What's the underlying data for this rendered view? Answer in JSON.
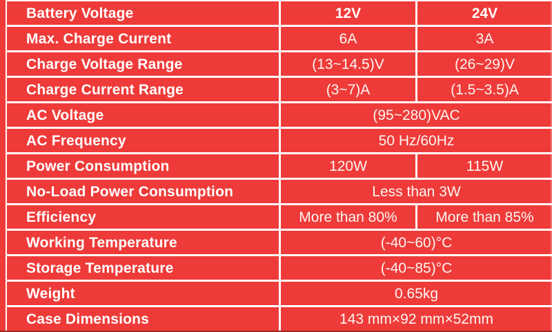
{
  "colors": {
    "table_background": "#ee3b39",
    "grid_lines": "#ffffff",
    "label_text": "#ffffff",
    "value_text": "#fdf5f1"
  },
  "table": {
    "rows": [
      {
        "label": "Battery Voltage",
        "values": [
          "12V",
          "24V"
        ]
      },
      {
        "label": "Max. Charge Current",
        "values": [
          "6A",
          "3A"
        ]
      },
      {
        "label": "Charge Voltage Range",
        "values": [
          "(13~14.5)V",
          "(26~29)V"
        ]
      },
      {
        "label": "Charge Current Range",
        "values": [
          "(3~7)A",
          "(1.5~3.5)A"
        ]
      },
      {
        "label": "AC Voltage",
        "value": "(95~280)VAC"
      },
      {
        "label": "AC Frequency",
        "value": "50 Hz/60Hz"
      },
      {
        "label": "Power Consumption",
        "values": [
          "120W",
          "115W"
        ]
      },
      {
        "label": "No-Load Power Consumption",
        "value": "Less than 3W"
      },
      {
        "label": "Efficiency",
        "values": [
          "More than 80%",
          "More than 85%"
        ]
      },
      {
        "label": "Working Temperature",
        "value": "(-40~60)°C"
      },
      {
        "label": "Storage Temperature",
        "value": "(-40~85)°C"
      },
      {
        "label": "Weight",
        "value": "0.65kg"
      },
      {
        "label": "Case Dimensions",
        "value": "143 mm×92 mm×52mm"
      }
    ]
  }
}
